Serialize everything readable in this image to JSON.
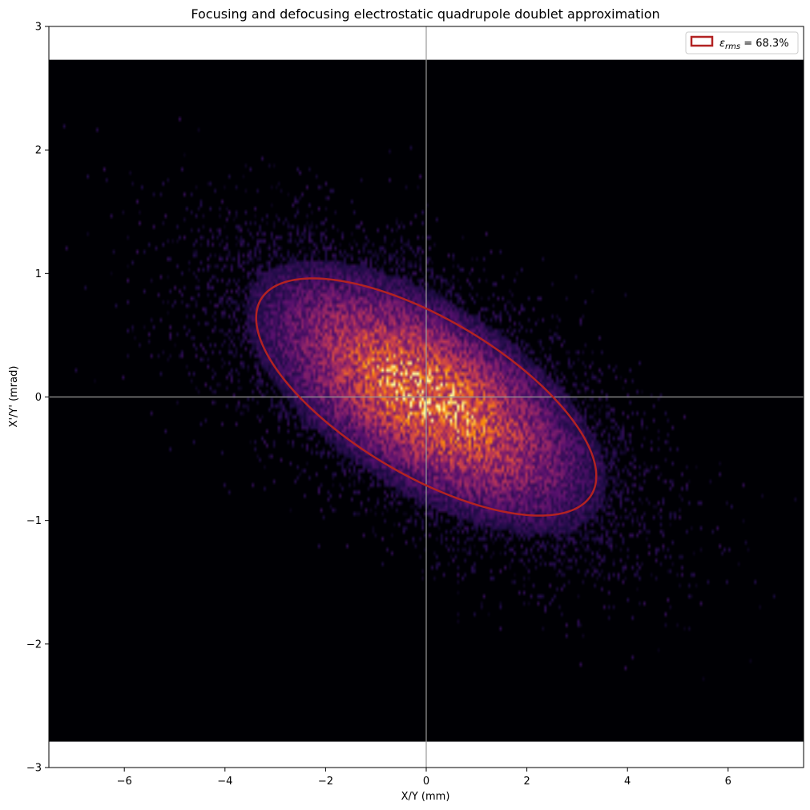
{
  "chart_data": {
    "type": "heatmap",
    "title": "Focusing and defocusing electrostatic quadrupole doublet approximation",
    "xlabel": "X/Y (mm)",
    "ylabel": "X'/Y' (mrad)",
    "xlim": [
      -7.5,
      7.5
    ],
    "ylim": [
      -3,
      3
    ],
    "xticks": [
      -6,
      -4,
      -2,
      0,
      2,
      4,
      6
    ],
    "yticks": [
      -3,
      -2,
      -1,
      0,
      1,
      2,
      3
    ],
    "xtick_labels": [
      "−6",
      "−4",
      "−2",
      "0",
      "2",
      "4",
      "6"
    ],
    "ytick_labels": [
      "−3",
      "−2",
      "−1",
      "0",
      "1",
      "2",
      "3"
    ],
    "histogram_y_range": [
      -2.79,
      2.73
    ],
    "colormap": "inferno",
    "crosshair_color": "#9a9a9a",
    "distribution": {
      "center": [
        0,
        0
      ],
      "sigma_x": 2.0,
      "sigma_xp": 0.62,
      "correlation": -0.62
    },
    "ellipse": {
      "center": [
        0,
        0
      ],
      "extent_x": [
        -3.38,
        3.38
      ],
      "extent_y": [
        -0.96,
        0.96
      ],
      "point_at_max_x": [
        3.38,
        -0.64
      ],
      "point_at_max_y": [
        -2.3,
        0.96
      ],
      "color": "#b22222"
    },
    "legend": {
      "entries": [
        {
          "symbol": "ε",
          "subscript": "rms",
          "equals": " = 68.3%",
          "color": "#b22222"
        }
      ],
      "position": "top-right"
    },
    "grid": false
  }
}
